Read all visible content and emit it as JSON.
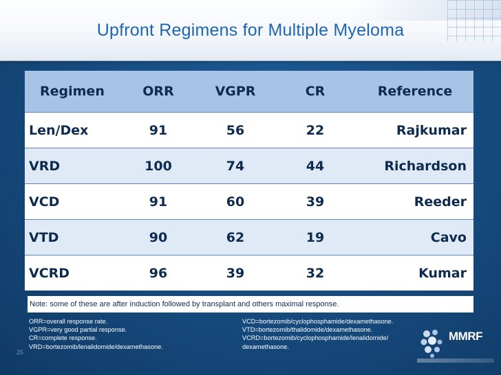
{
  "slide": {
    "title": "Upfront Regimens for Multiple Myeloma",
    "page_number": "25"
  },
  "table": {
    "headers": [
      "Regimen",
      "ORR",
      "VGPR",
      "CR",
      "Reference"
    ],
    "rows": [
      [
        "Len/Dex",
        "91",
        "56",
        "22",
        "Rajkumar"
      ],
      [
        "VRD",
        "100",
        "74",
        "44",
        "Richardson"
      ],
      [
        "VCD",
        "91",
        "60",
        "39",
        "Reeder"
      ],
      [
        "VTD",
        "90",
        "62",
        "19",
        "Cavo"
      ],
      [
        "VCRD",
        "96",
        "39",
        "32",
        "Kumar"
      ]
    ]
  },
  "note": "Note: some of these are after induction followed by transplant and others maximal response.",
  "definitions_left": [
    "ORR=overall response rate.",
    "VGPR=very good partial response.",
    "CR=complete response.",
    "VRD=bortezomib/lenalidomide/dexamethasone."
  ],
  "definitions_right": [
    "VCD=bortezomib/cyclophosphamide/dexamethasone.",
    "VTD=bortezomib/thalidomide/dexamethasone.",
    "VCRD=bortezomib/cyclophosphamide/lenalidomide/",
    "dexamethasone."
  ],
  "logo": {
    "text": "MMRF",
    "icon": "mmrf-logo-icon"
  },
  "colors": {
    "title": "#1e66b4",
    "header_bg": "#a7c3e6",
    "background": "#174d82",
    "row_alt": "#dfeaf6"
  }
}
